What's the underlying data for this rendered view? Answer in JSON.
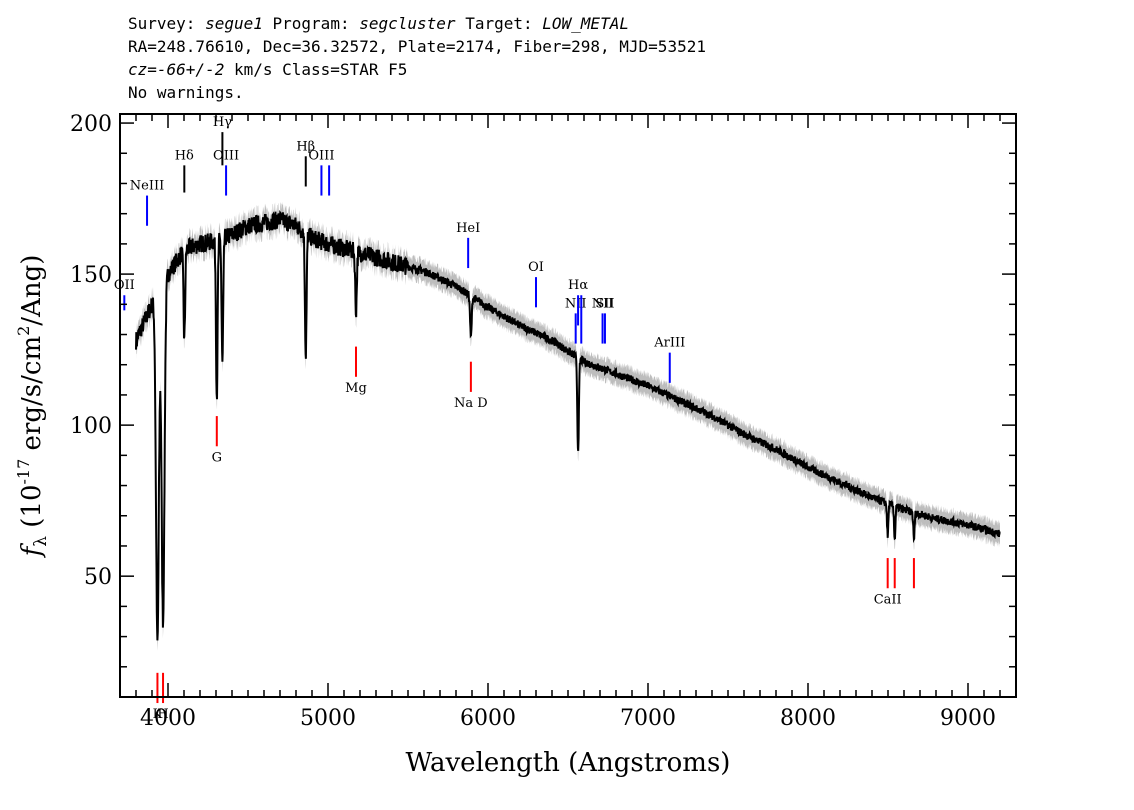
{
  "header": {
    "survey_label": "Survey:",
    "survey": "segue1",
    "program_label": "Program:",
    "program": "segcluster",
    "target_label": "Target:",
    "target": "LOW_METAL",
    "line2": "RA=248.76610, Dec=36.32572, Plate=2174, Fiber=298, MJD=53521",
    "cz": "cz=-66+/-2",
    "cz_units": "km/s",
    "class_text": "Class=STAR F5",
    "warnings": "No warnings."
  },
  "chart_data": {
    "type": "line",
    "xlabel": "Wavelength (Angstroms)",
    "ylabel": "f_λ (10^-17 erg/s/cm^2/Ang)",
    "xlim": [
      3700,
      9300
    ],
    "ylim": [
      10,
      203
    ],
    "x_ticks": [
      4000,
      5000,
      6000,
      7000,
      8000,
      9000
    ],
    "y_ticks": [
      50,
      100,
      150,
      200
    ],
    "continuum": [
      [
        3800,
        128
      ],
      [
        3900,
        140
      ],
      [
        4000,
        150
      ],
      [
        4100,
        158
      ],
      [
        4200,
        160
      ],
      [
        4300,
        161
      ],
      [
        4400,
        163
      ],
      [
        4500,
        166
      ],
      [
        4600,
        167
      ],
      [
        4700,
        168
      ],
      [
        4800,
        166
      ],
      [
        4900,
        162
      ],
      [
        5000,
        160
      ],
      [
        5200,
        157
      ],
      [
        5400,
        154
      ],
      [
        5600,
        151
      ],
      [
        5800,
        146
      ],
      [
        6000,
        139
      ],
      [
        6200,
        133
      ],
      [
        6400,
        128
      ],
      [
        6600,
        121
      ],
      [
        6800,
        117
      ],
      [
        7000,
        113
      ],
      [
        7200,
        108
      ],
      [
        7400,
        103
      ],
      [
        7600,
        97
      ],
      [
        7800,
        92
      ],
      [
        8000,
        86
      ],
      [
        8200,
        81
      ],
      [
        8400,
        76
      ],
      [
        8600,
        72
      ],
      [
        8800,
        69
      ],
      [
        9000,
        67
      ],
      [
        9200,
        64
      ]
    ],
    "absorption_features": [
      {
        "name": "K",
        "wavelength": 3934,
        "min_flux": 28
      },
      {
        "name": "H",
        "wavelength": 3969,
        "min_flux": 35
      },
      {
        "name": "Hδ",
        "wavelength": 4102,
        "min_flux": 128
      },
      {
        "name": "G",
        "wavelength": 4305,
        "min_flux": 110
      },
      {
        "name": "Hγ",
        "wavelength": 4340,
        "min_flux": 120
      },
      {
        "name": "Hβ",
        "wavelength": 4861,
        "min_flux": 123
      },
      {
        "name": "Mg",
        "wavelength": 5175,
        "min_flux": 138
      },
      {
        "name": "Na D",
        "wavelength": 5893,
        "min_flux": 129
      },
      {
        "name": "Hα",
        "wavelength": 6563,
        "min_flux": 92
      },
      {
        "name": "CaII a",
        "wavelength": 8498,
        "min_flux": 63
      },
      {
        "name": "CaII b",
        "wavelength": 8542,
        "min_flux": 62
      },
      {
        "name": "CaII c",
        "wavelength": 8662,
        "min_flux": 62
      }
    ],
    "emission_lines": [
      {
        "label": "OII",
        "wavelength": 3727,
        "y_top": 143,
        "y_bottom": 138
      },
      {
        "label": "NeIII",
        "wavelength": 3869,
        "y_top": 176,
        "y_bottom": 166
      },
      {
        "label": "Hδ",
        "wavelength": 4102,
        "y_top": 186,
        "y_bottom": 177,
        "color": "black"
      },
      {
        "label": "Hγ",
        "wavelength": 4340,
        "y_top": 197,
        "y_bottom": 186,
        "color": "black"
      },
      {
        "label": "OIII",
        "wavelength": 4363,
        "y_top": 186,
        "y_bottom": 176
      },
      {
        "label": "Hβ",
        "wavelength": 4861,
        "y_top": 189,
        "y_bottom": 179,
        "color": "black"
      },
      {
        "label": "OIII",
        "wavelength": 4959,
        "y_top": 186,
        "y_bottom": 176
      },
      {
        "label": "",
        "wavelength": 5007,
        "y_top": 186,
        "y_bottom": 176
      },
      {
        "label": "HeI",
        "wavelength": 5876,
        "y_top": 162,
        "y_bottom": 152
      },
      {
        "label": "OI",
        "wavelength": 6300,
        "y_top": 149,
        "y_bottom": 139
      },
      {
        "label": "NII",
        "wavelength": 6548,
        "y_top": 137,
        "y_bottom": 127
      },
      {
        "label": "Hα",
        "wavelength": 6563,
        "y_top": 143,
        "y_bottom": 133
      },
      {
        "label": "",
        "wavelength": 6583,
        "y_top": 143,
        "y_bottom": 127
      },
      {
        "label": "NII",
        "wavelength": 6716,
        "y_top": 137,
        "y_bottom": 127
      },
      {
        "label": "SII",
        "wavelength": 6731,
        "y_top": 137,
        "y_bottom": 127
      },
      {
        "label": "ArIII",
        "wavelength": 7136,
        "y_top": 124,
        "y_bottom": 114
      }
    ],
    "absorption_markers": [
      {
        "label": "K",
        "wavelength": 3934,
        "y_top": 18,
        "y_bottom": 8
      },
      {
        "label": "H",
        "wavelength": 3969,
        "y_top": 18,
        "y_bottom": 8
      },
      {
        "label": "G",
        "wavelength": 4305,
        "y_top": 103,
        "y_bottom": 93
      },
      {
        "label": "Mg",
        "wavelength": 5175,
        "y_top": 126,
        "y_bottom": 116
      },
      {
        "label": "Na D",
        "wavelength": 5893,
        "y_top": 121,
        "y_bottom": 111
      },
      {
        "label": "CaII",
        "wavelength": 8498,
        "y_top": 56,
        "y_bottom": 46
      },
      {
        "label": "",
        "wavelength": 8542,
        "y_top": 56,
        "y_bottom": 46
      },
      {
        "label": "",
        "wavelength": 8662,
        "y_top": 56,
        "y_bottom": 46
      }
    ],
    "colors": {
      "spectrum": "#000000",
      "error_band": "#bdbdbd",
      "emission": "#0000ff",
      "absorption": "#ff0000",
      "balmer": "#000000"
    }
  }
}
